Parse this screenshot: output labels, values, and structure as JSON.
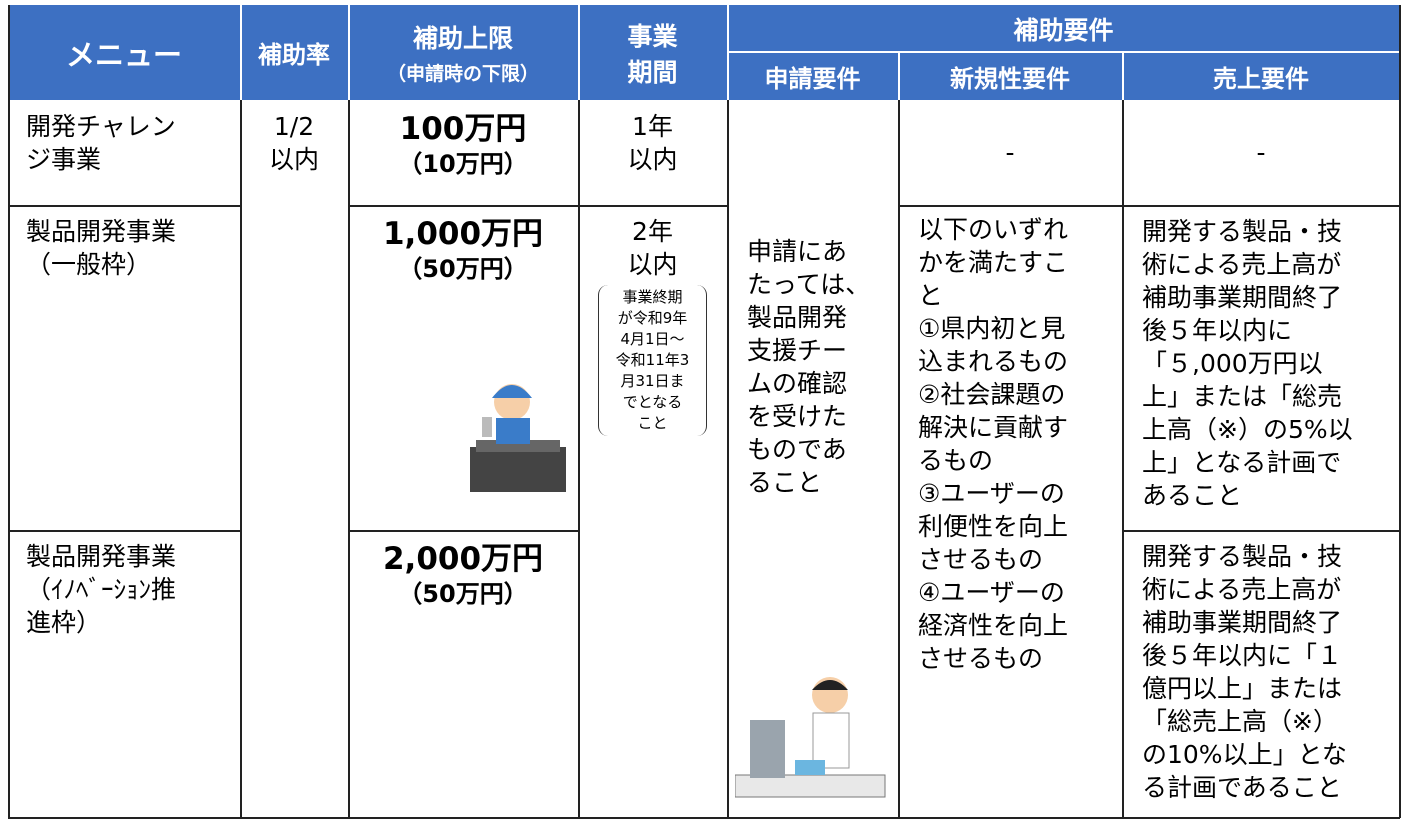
{
  "header": {
    "menu": "メニュー",
    "rate": "補助率",
    "limit": [
      "補助上限",
      "（申請時の下限）"
    ],
    "period": [
      "事業",
      "期間"
    ],
    "requirements": "補助要件",
    "apply": "申請要件",
    "novelty": "新規性要件",
    "sales": "売上要件"
  },
  "rate": [
    "1/2",
    "以内"
  ],
  "apply": [
    "申請にあ",
    "たっては、",
    "製品開発",
    "支援チー",
    "ムの確認",
    "を受けた",
    "ものであ",
    "ること"
  ],
  "novelty": [
    "以下のいずれ",
    "かを満たすこ",
    "と",
    "①県内初と見",
    "込まれるもの",
    "②社会課題の",
    "解決に貢献す",
    "るもの",
    "③ユーザーの",
    "利便性を向上",
    "させるもの",
    "④ユーザーの",
    "経済性を向上",
    "させるもの"
  ],
  "rows": [
    {
      "menu": [
        "開発チャレン",
        "ジ事業"
      ],
      "limit": {
        "amount": "100万円",
        "min": "（10万円）"
      },
      "period": [
        "1年",
        "以内"
      ],
      "novelty": "-",
      "sales": [
        "-"
      ]
    },
    {
      "menu": [
        "製品開発事業",
        "（一般枠）"
      ],
      "limit": {
        "amount": "1,000万円",
        "min": "（50万円）"
      },
      "period": [
        "2年",
        "以内"
      ],
      "period_note": [
        "事業終期",
        "が令和9年",
        "4月1日～",
        "令和11年3",
        "月31日ま",
        "でとなる",
        "こと"
      ],
      "sales": [
        "開発する製品・技",
        "術による売上高が",
        "補助事業期間終了",
        "後５年以内に",
        "「５,000万円以",
        "上」または「総売",
        "上高（※）の5%以",
        "上」となる計画で",
        "あること"
      ]
    },
    {
      "menu": [
        "製品開発事業",
        "（ｲﾉﾍﾞｰｼｮﾝ推",
        "進枠）"
      ],
      "limit": {
        "amount": "2,000万円",
        "min": "（50万円）"
      },
      "sales": [
        "開発する製品・技",
        "術による売上高が",
        "補助事業期間終了",
        "後５年以内に「１",
        "億円以上」または",
        "「総売上高（※）",
        "の10%以上」とな",
        "る計画であること"
      ]
    }
  ]
}
